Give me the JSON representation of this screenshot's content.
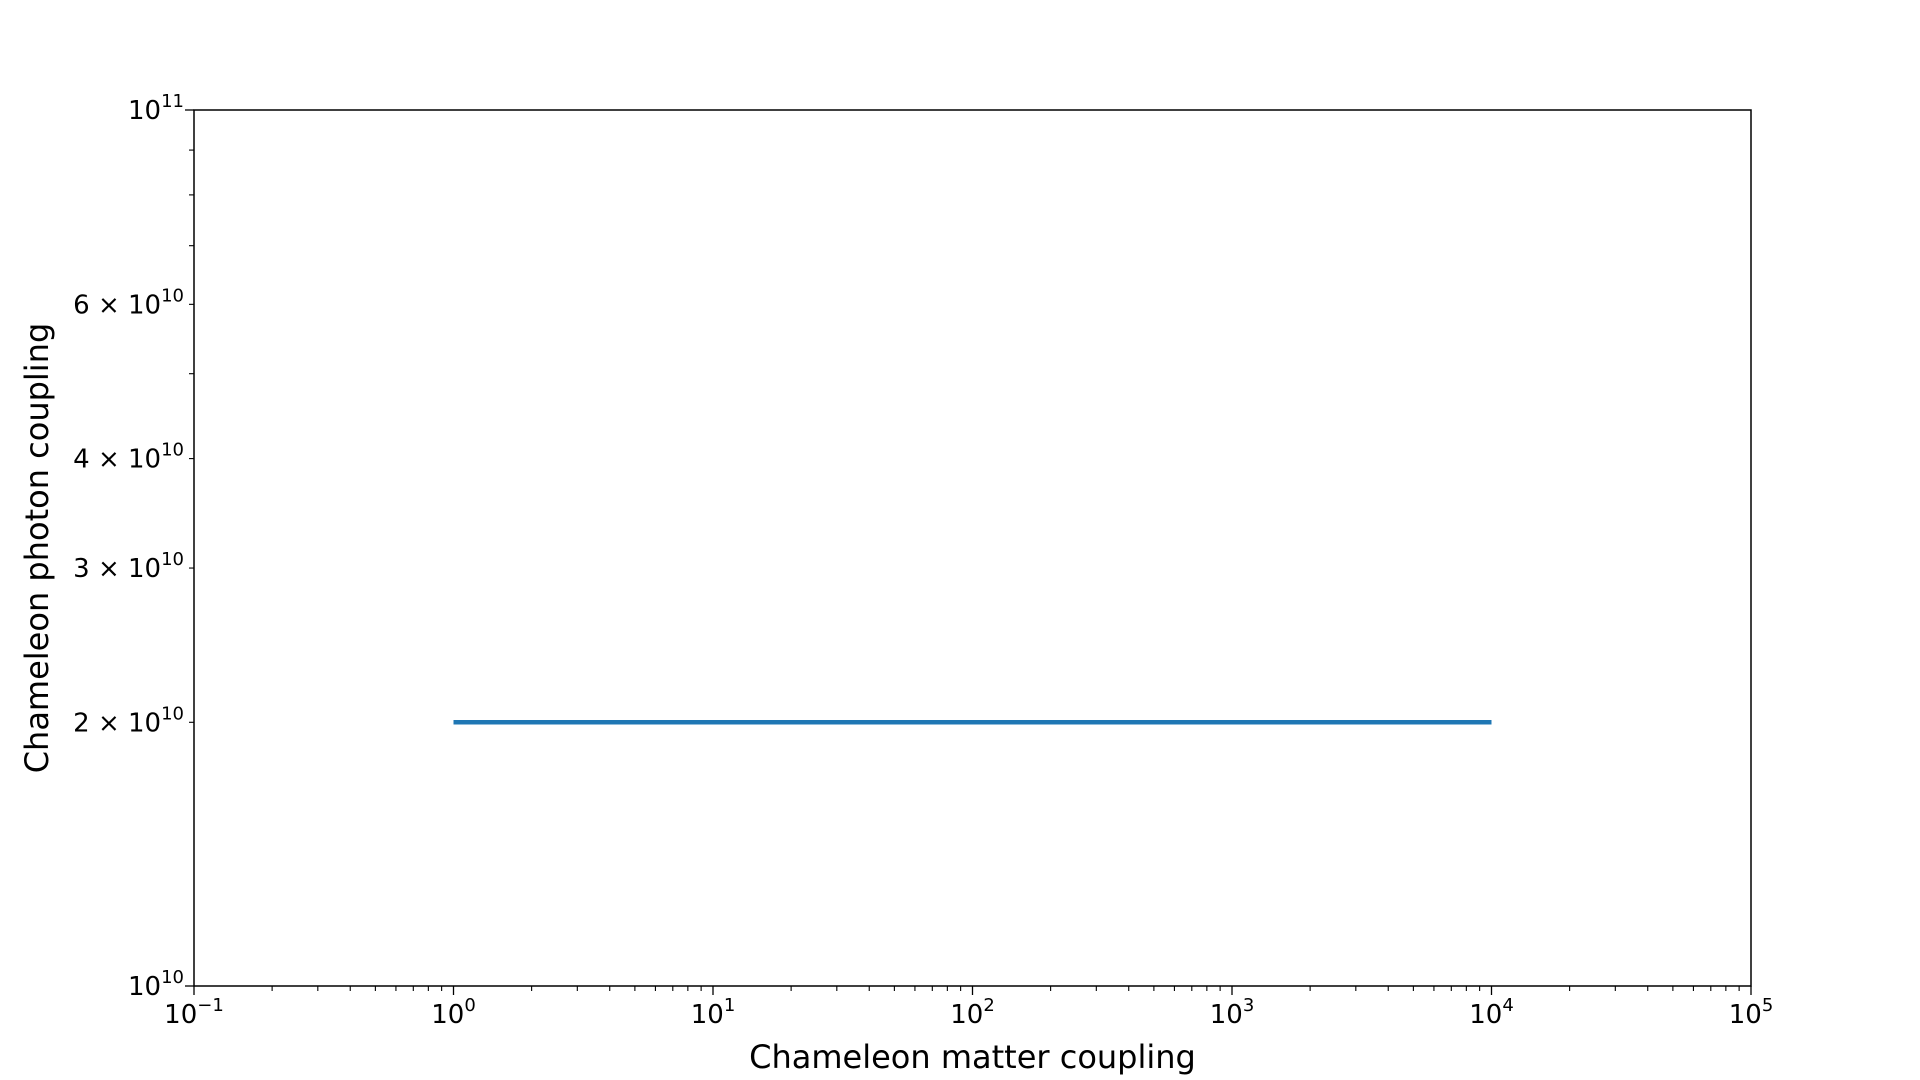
{
  "chart_data": {
    "type": "line",
    "title": "",
    "xlabel": "Chameleon matter coupling",
    "ylabel": "Chameleon photon coupling",
    "xscale": "log",
    "yscale": "log",
    "xlim": [
      0.1,
      100000
    ],
    "ylim": [
      10000000000,
      100000000000
    ],
    "grid": false,
    "legend": "none",
    "x_major_ticks": [
      {
        "value": 0.1,
        "base": "10",
        "exp": "−1"
      },
      {
        "value": 1,
        "base": "10",
        "exp": "0"
      },
      {
        "value": 10,
        "base": "10",
        "exp": "1"
      },
      {
        "value": 100,
        "base": "10",
        "exp": "2"
      },
      {
        "value": 1000,
        "base": "10",
        "exp": "3"
      },
      {
        "value": 10000,
        "base": "10",
        "exp": "4"
      },
      {
        "value": 100000,
        "base": "10",
        "exp": "5"
      }
    ],
    "y_labeled_ticks": [
      {
        "value": 10000000000,
        "base": "10",
        "exp": "10"
      },
      {
        "value": 20000000000,
        "base": "2 × 10",
        "exp": "10"
      },
      {
        "value": 30000000000,
        "base": "3 × 10",
        "exp": "10"
      },
      {
        "value": 40000000000,
        "base": "4 × 10",
        "exp": "10"
      },
      {
        "value": 60000000000,
        "base": "6 × 10",
        "exp": "10"
      },
      {
        "value": 100000000000,
        "base": "10",
        "exp": "11"
      }
    ],
    "y_minor_ticks": [
      50000000000,
      70000000000,
      80000000000,
      90000000000
    ],
    "series": [
      {
        "color": "#1f77b4",
        "x": [
          1,
          10,
          100,
          1000,
          10000
        ],
        "y": [
          20000000000,
          20000000000,
          20000000000,
          20000000000,
          20000000000
        ]
      }
    ]
  }
}
